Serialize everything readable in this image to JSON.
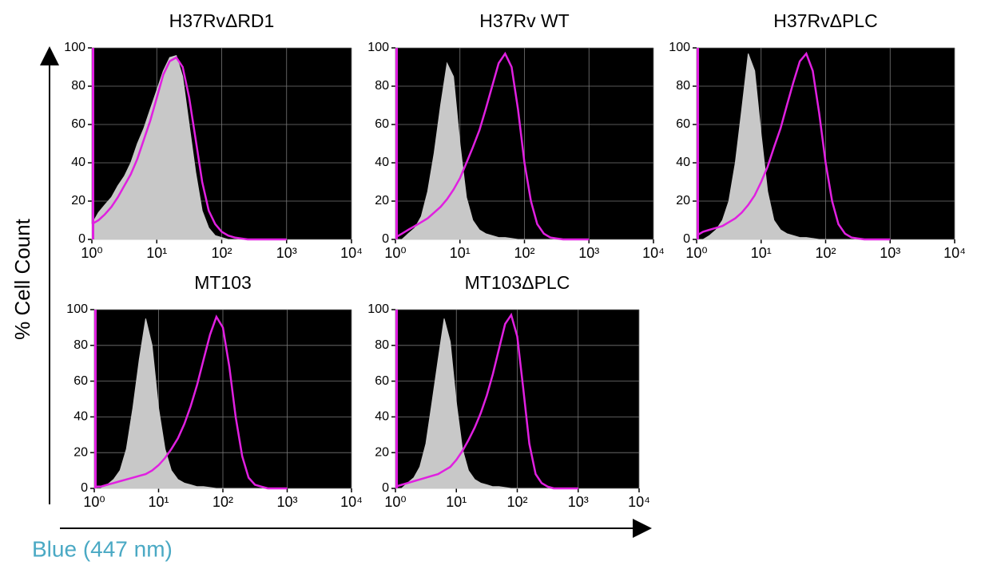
{
  "y_label": "% Cell Count",
  "x_label": "Blue (447 nm)",
  "chart_data": [
    {
      "type": "line",
      "title": "H37RvΔRD1",
      "xscale": "log",
      "grid": true,
      "x": [
        1,
        1.26,
        1.58,
        2,
        2.51,
        3.16,
        3.98,
        5.01,
        6.31,
        7.94,
        10,
        12.6,
        15.8,
        20,
        25.1,
        31.6,
        39.8,
        50.1,
        63.1,
        79.4,
        100,
        126,
        158,
        200,
        251,
        316,
        398,
        501,
        631,
        794,
        1000
      ],
      "series": [
        {
          "color": "#c8c8c8",
          "fill": true,
          "values": [
            8,
            14,
            18,
            22,
            28,
            33,
            40,
            50,
            58,
            68,
            78,
            88,
            95,
            96,
            85,
            60,
            35,
            15,
            6,
            2,
            1,
            0,
            0,
            0,
            0,
            0,
            0,
            0,
            0,
            0,
            0
          ]
        },
        {
          "color": "#e020e0",
          "fill": false,
          "values": [
            8,
            10,
            13,
            17,
            22,
            28,
            34,
            42,
            52,
            62,
            74,
            86,
            93,
            95,
            90,
            74,
            52,
            30,
            15,
            8,
            4,
            2,
            1,
            0.5,
            0,
            0,
            0,
            0,
            0,
            0,
            0
          ]
        }
      ],
      "xlim": [
        1,
        10000
      ],
      "ylim": [
        0,
        100
      ],
      "yticks": [
        0,
        20,
        40,
        60,
        80,
        100
      ],
      "xticks": [
        {
          "value": 1,
          "label": "10⁰"
        },
        {
          "value": 10,
          "label": "10¹"
        },
        {
          "value": 100,
          "label": "10²"
        },
        {
          "value": 1000,
          "label": "10³"
        },
        {
          "value": 10000,
          "label": "10⁴"
        }
      ]
    },
    {
      "type": "line",
      "title": "H37Rv WT",
      "xscale": "log",
      "grid": true,
      "x": [
        1,
        1.26,
        1.58,
        2,
        2.51,
        3.16,
        3.98,
        5.01,
        6.31,
        7.94,
        10,
        12.6,
        15.8,
        20,
        25.1,
        31.6,
        39.8,
        50.1,
        63.1,
        79.4,
        100,
        126,
        158,
        200,
        251,
        316,
        398,
        501,
        631,
        794,
        1000
      ],
      "series": [
        {
          "color": "#c8c8c8",
          "fill": true,
          "values": [
            0,
            0,
            3,
            6,
            12,
            25,
            45,
            70,
            92,
            85,
            50,
            22,
            10,
            5,
            3,
            2,
            1,
            1,
            0.5,
            0,
            0,
            0,
            0,
            0,
            0,
            0,
            0,
            0,
            0,
            0,
            0
          ]
        },
        {
          "color": "#e020e0",
          "fill": false,
          "values": [
            1,
            3,
            5,
            7,
            9,
            11,
            14,
            17,
            21,
            26,
            32,
            40,
            48,
            57,
            68,
            80,
            92,
            97,
            90,
            68,
            40,
            20,
            8,
            3,
            1,
            0.5,
            0,
            0,
            0,
            0,
            0
          ]
        }
      ],
      "xlim": [
        1,
        10000
      ],
      "ylim": [
        0,
        100
      ],
      "yticks": [
        0,
        20,
        40,
        60,
        80,
        100
      ],
      "xticks": [
        {
          "value": 1,
          "label": "10⁰"
        },
        {
          "value": 10,
          "label": "10¹"
        },
        {
          "value": 100,
          "label": "10²"
        },
        {
          "value": 1000,
          "label": "10³"
        },
        {
          "value": 10000,
          "label": "10⁴"
        }
      ]
    },
    {
      "type": "line",
      "title": "H37RvΔPLC",
      "xscale": "log",
      "grid": true,
      "x": [
        1,
        1.26,
        1.58,
        2,
        2.51,
        3.16,
        3.98,
        5.01,
        6.31,
        7.94,
        10,
        12.6,
        15.8,
        20,
        25.1,
        31.6,
        39.8,
        50.1,
        63.1,
        79.4,
        100,
        126,
        158,
        200,
        251,
        316,
        398,
        501,
        631,
        794,
        1000
      ],
      "series": [
        {
          "color": "#c8c8c8",
          "fill": true,
          "values": [
            0,
            0,
            2,
            5,
            10,
            20,
            40,
            68,
            97,
            88,
            55,
            25,
            10,
            5,
            3,
            2,
            1,
            1,
            0.5,
            0,
            0,
            0,
            0,
            0,
            0,
            0,
            0,
            0,
            0,
            0,
            0
          ]
        },
        {
          "color": "#e020e0",
          "fill": false,
          "values": [
            2,
            4,
            5,
            6,
            7,
            9,
            11,
            14,
            18,
            23,
            30,
            38,
            48,
            58,
            70,
            82,
            93,
            97,
            88,
            66,
            40,
            20,
            8,
            3,
            1,
            0.5,
            0,
            0,
            0,
            0,
            0
          ]
        }
      ],
      "xlim": [
        1,
        10000
      ],
      "ylim": [
        0,
        100
      ],
      "yticks": [
        0,
        20,
        40,
        60,
        80,
        100
      ],
      "xticks": [
        {
          "value": 1,
          "label": "10⁰"
        },
        {
          "value": 10,
          "label": "10¹"
        },
        {
          "value": 100,
          "label": "10²"
        },
        {
          "value": 1000,
          "label": "10³"
        },
        {
          "value": 10000,
          "label": "10⁴"
        }
      ]
    },
    {
      "type": "line",
      "title": "MT103",
      "xscale": "log",
      "grid": true,
      "x": [
        1,
        1.26,
        1.58,
        2,
        2.51,
        3.16,
        3.98,
        5.01,
        6.31,
        7.94,
        10,
        12.6,
        15.8,
        20,
        25.1,
        31.6,
        39.8,
        50.1,
        63.1,
        79.4,
        100,
        126,
        158,
        200,
        251,
        316,
        398,
        501,
        631,
        794,
        1000
      ],
      "series": [
        {
          "color": "#c8c8c8",
          "fill": true,
          "values": [
            0,
            0,
            2,
            5,
            10,
            22,
            45,
            72,
            95,
            80,
            45,
            22,
            10,
            5,
            3,
            2,
            1,
            1,
            0.5,
            0,
            0,
            0,
            0,
            0,
            0,
            0,
            0,
            0,
            0,
            0,
            0
          ]
        },
        {
          "color": "#e020e0",
          "fill": false,
          "values": [
            1,
            1,
            2,
            3,
            4,
            5,
            6,
            7,
            8,
            10,
            13,
            17,
            22,
            28,
            36,
            46,
            58,
            72,
            86,
            96,
            90,
            68,
            40,
            18,
            6,
            2,
            1,
            0,
            0,
            0,
            0
          ]
        }
      ],
      "xlim": [
        1,
        10000
      ],
      "ylim": [
        0,
        100
      ],
      "yticks": [
        0,
        20,
        40,
        60,
        80,
        100
      ],
      "xticks": [
        {
          "value": 1,
          "label": "10⁰"
        },
        {
          "value": 10,
          "label": "10¹"
        },
        {
          "value": 100,
          "label": "10²"
        },
        {
          "value": 1000,
          "label": "10³"
        },
        {
          "value": 10000,
          "label": "10⁴"
        }
      ]
    },
    {
      "type": "line",
      "title": "MT103ΔPLC",
      "xscale": "log",
      "grid": true,
      "x": [
        1,
        1.26,
        1.58,
        2,
        2.51,
        3.16,
        3.98,
        5.01,
        6.31,
        7.94,
        10,
        12.6,
        15.8,
        20,
        25.1,
        31.6,
        39.8,
        50.1,
        63.1,
        79.4,
        100,
        126,
        158,
        200,
        251,
        316,
        398,
        501,
        631,
        794,
        1000
      ],
      "series": [
        {
          "color": "#c8c8c8",
          "fill": true,
          "values": [
            0,
            0,
            3,
            6,
            12,
            25,
            48,
            72,
            95,
            82,
            48,
            22,
            10,
            5,
            3,
            2,
            1,
            1,
            0.5,
            0,
            0,
            0,
            0,
            0,
            0,
            0,
            0,
            0,
            0,
            0,
            0
          ]
        },
        {
          "color": "#e020e0",
          "fill": false,
          "values": [
            1,
            2,
            3,
            4,
            5,
            6,
            7,
            8,
            10,
            12,
            16,
            21,
            27,
            34,
            42,
            52,
            64,
            78,
            92,
            97,
            85,
            55,
            25,
            8,
            3,
            1,
            0,
            0,
            0,
            0,
            0
          ]
        }
      ],
      "xlim": [
        1,
        10000
      ],
      "ylim": [
        0,
        100
      ],
      "yticks": [
        0,
        20,
        40,
        60,
        80,
        100
      ],
      "xticks": [
        {
          "value": 1,
          "label": "10⁰"
        },
        {
          "value": 10,
          "label": "10¹"
        },
        {
          "value": 100,
          "label": "10²"
        },
        {
          "value": 1000,
          "label": "10³"
        },
        {
          "value": 10000,
          "label": "10⁴"
        }
      ]
    }
  ]
}
